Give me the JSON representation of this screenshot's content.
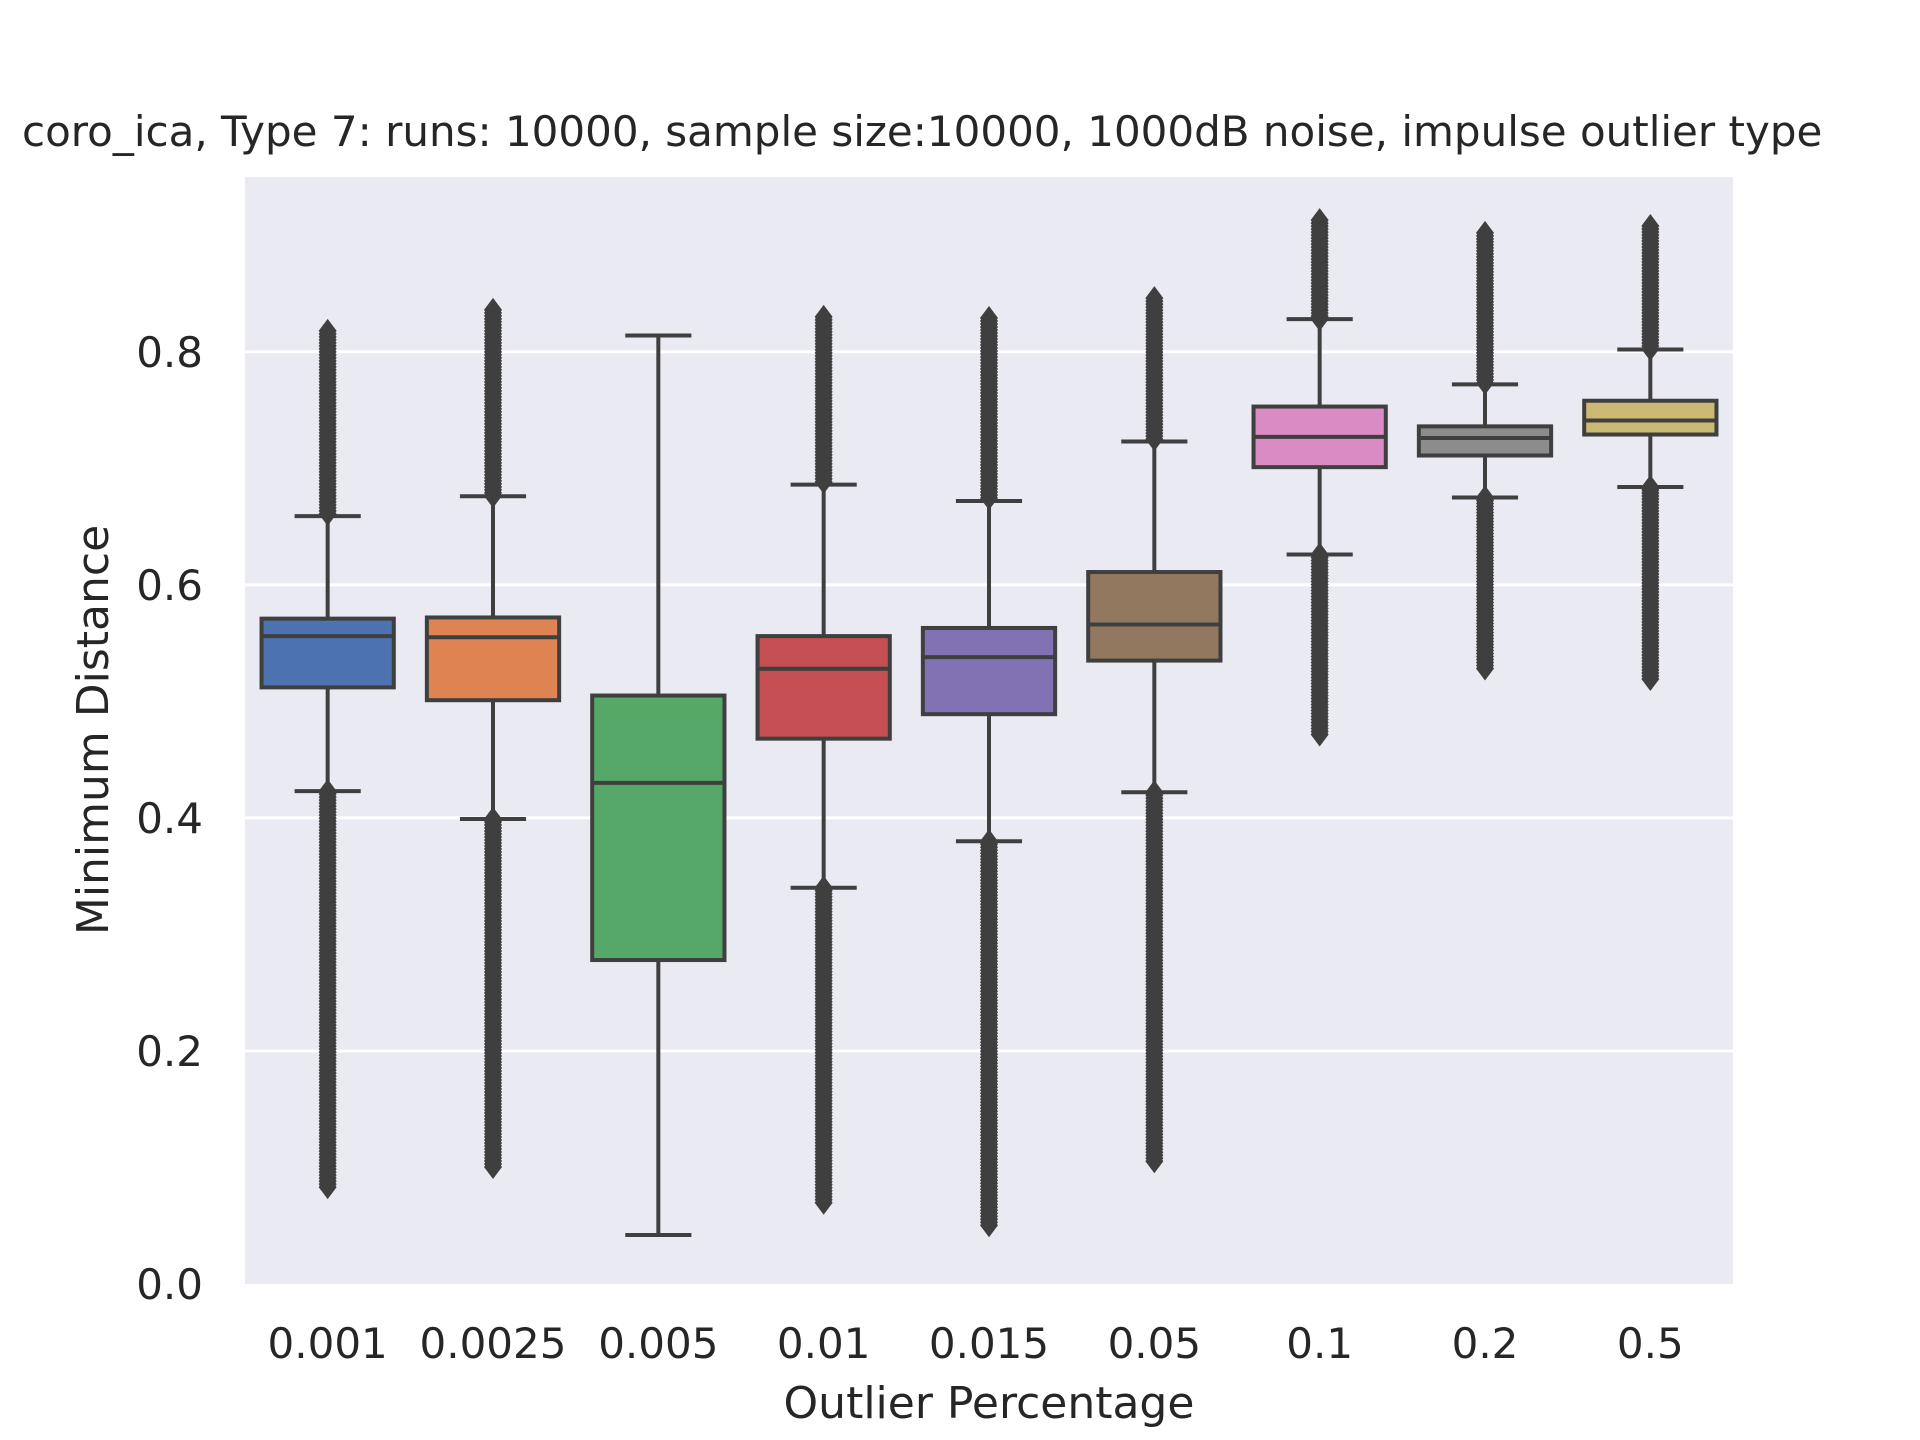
{
  "chart_data": {
    "type": "box",
    "title": "coro_ica,  Type 7:  runs: 10000, sample size:10000, 1000dB noise, impulse outlier type",
    "xlabel": "Outlier Percentage",
    "ylabel": "Minimum Distance",
    "ylim": [
      0.0,
      0.95
    ],
    "y_ticks": [
      "0.0",
      "0.2",
      "0.4",
      "0.6",
      "0.8"
    ],
    "grid": true,
    "categories": [
      "0.001",
      "0.0025",
      "0.005",
      "0.01",
      "0.015",
      "0.05",
      "0.1",
      "0.2",
      "0.5"
    ],
    "boxes": [
      {
        "category": "0.001",
        "color": "#4c72b0",
        "whisker_low": 0.423,
        "q1": 0.512,
        "median": 0.556,
        "q3": 0.571,
        "whisker_high": 0.659,
        "outlier_low_range": [
          0.083,
          0.423
        ],
        "outlier_high_range": [
          0.659,
          0.818
        ]
      },
      {
        "category": "0.0025",
        "color": "#dd8452",
        "whisker_low": 0.399,
        "q1": 0.501,
        "median": 0.555,
        "q3": 0.572,
        "whisker_high": 0.676,
        "outlier_low_range": [
          0.1,
          0.399
        ],
        "outlier_high_range": [
          0.676,
          0.836
        ]
      },
      {
        "category": "0.005",
        "color": "#55a868",
        "whisker_low": 0.042,
        "q1": 0.278,
        "median": 0.43,
        "q3": 0.505,
        "whisker_high": 0.814,
        "outlier_low_range": null,
        "outlier_high_range": null
      },
      {
        "category": "0.01",
        "color": "#c44e52",
        "whisker_low": 0.34,
        "q1": 0.468,
        "median": 0.528,
        "q3": 0.556,
        "whisker_high": 0.686,
        "outlier_low_range": [
          0.068,
          0.34
        ],
        "outlier_high_range": [
          0.686,
          0.83
        ]
      },
      {
        "category": "0.015",
        "color": "#8172b3",
        "whisker_low": 0.38,
        "q1": 0.489,
        "median": 0.538,
        "q3": 0.563,
        "whisker_high": 0.672,
        "outlier_low_range": [
          0.05,
          0.38
        ],
        "outlier_high_range": [
          0.672,
          0.829
        ]
      },
      {
        "category": "0.05",
        "color": "#937860",
        "whisker_low": 0.422,
        "q1": 0.535,
        "median": 0.566,
        "q3": 0.611,
        "whisker_high": 0.723,
        "outlier_low_range": [
          0.105,
          0.422
        ],
        "outlier_high_range": [
          0.723,
          0.846
        ]
      },
      {
        "category": "0.1",
        "color": "#da8bc3",
        "whisker_low": 0.626,
        "q1": 0.701,
        "median": 0.727,
        "q3": 0.753,
        "whisker_high": 0.828,
        "outlier_low_range": [
          0.47,
          0.626
        ],
        "outlier_high_range": [
          0.828,
          0.913
        ]
      },
      {
        "category": "0.2",
        "color": "#8c8c8c",
        "whisker_low": 0.675,
        "q1": 0.711,
        "median": 0.726,
        "q3": 0.736,
        "whisker_high": 0.772,
        "outlier_low_range": [
          0.527,
          0.675
        ],
        "outlier_high_range": [
          0.772,
          0.902
        ]
      },
      {
        "category": "0.5",
        "color": "#ccb974",
        "whisker_low": 0.684,
        "q1": 0.729,
        "median": 0.741,
        "q3": 0.758,
        "whisker_high": 0.802,
        "outlier_low_range": [
          0.517,
          0.684
        ],
        "outlier_high_range": [
          0.802,
          0.908
        ]
      }
    ]
  }
}
